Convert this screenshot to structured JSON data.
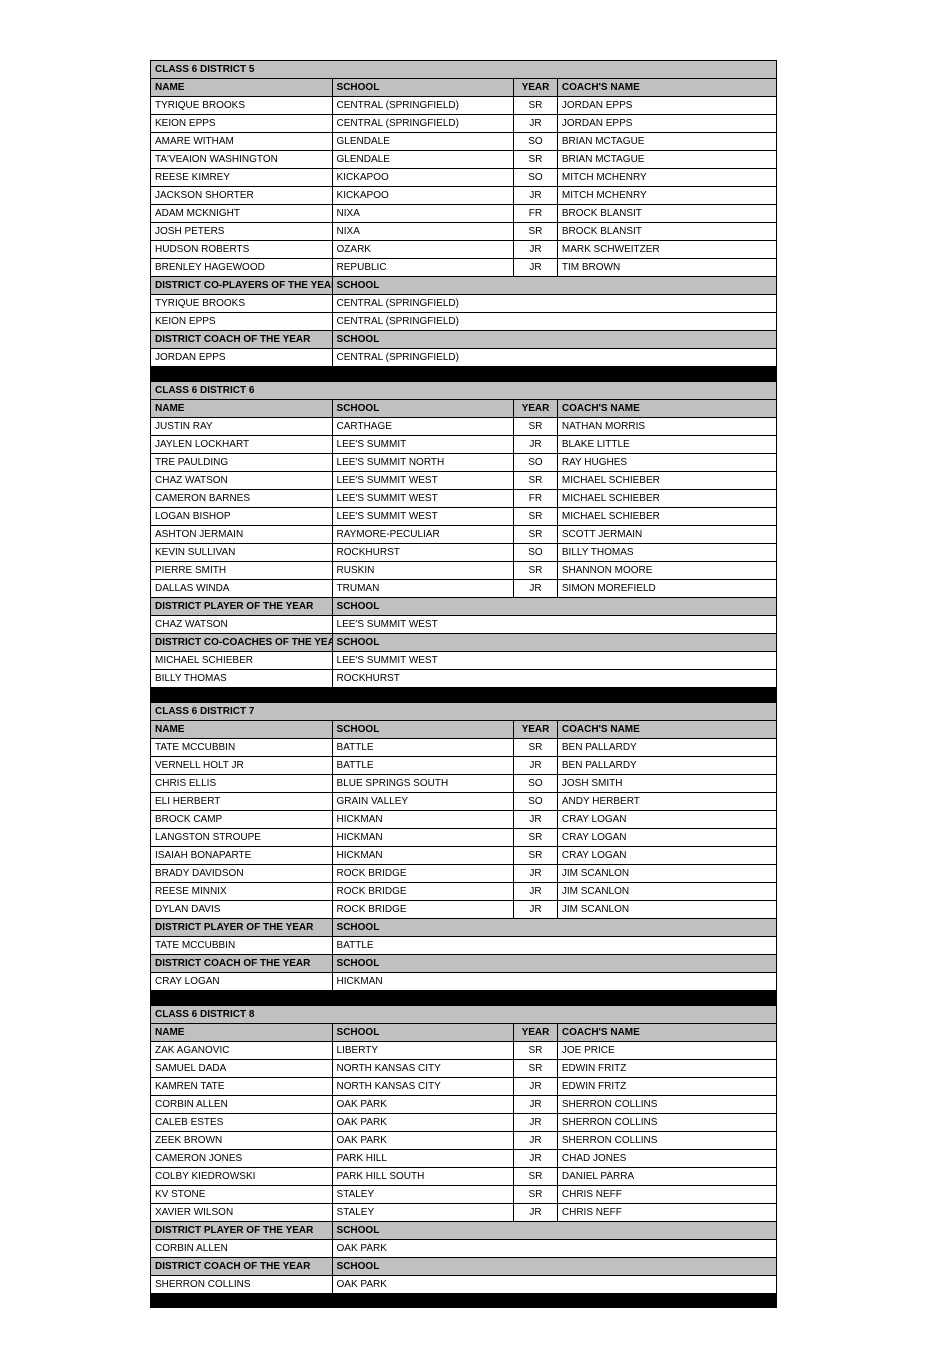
{
  "colors": {
    "header_bg": "#c0c0c0",
    "separator_bg": "#000000",
    "border": "#000000",
    "text": "#000000",
    "bg": "#ffffff"
  },
  "fontsize": 10,
  "labels": {
    "name": "NAME",
    "school": "SCHOOL",
    "year": "YEAR",
    "coach": "COACH'S NAME"
  },
  "districts": [
    {
      "title": "CLASS 6 DISTRICT 5",
      "players": [
        {
          "name": "TYRIQUE BROOKS",
          "school": "CENTRAL (SPRINGFIELD)",
          "year": "SR",
          "coach": "JORDAN EPPS"
        },
        {
          "name": "KEION EPPS",
          "school": "CENTRAL (SPRINGFIELD)",
          "year": "JR",
          "coach": "JORDAN EPPS"
        },
        {
          "name": "AMARE WITHAM",
          "school": "GLENDALE",
          "year": "SO",
          "coach": "BRIAN MCTAGUE"
        },
        {
          "name": "TA'VEAION WASHINGTON",
          "school": "GLENDALE",
          "year": "SR",
          "coach": "BRIAN MCTAGUE"
        },
        {
          "name": "REESE KIMREY",
          "school": "KICKAPOO",
          "year": "SO",
          "coach": "MITCH MCHENRY"
        },
        {
          "name": "JACKSON SHORTER",
          "school": "KICKAPOO",
          "year": "JR",
          "coach": "MITCH MCHENRY"
        },
        {
          "name": "ADAM MCKNIGHT",
          "school": "NIXA",
          "year": "FR",
          "coach": "BROCK BLANSIT"
        },
        {
          "name": "JOSH PETERS",
          "school": "NIXA",
          "year": "SR",
          "coach": "BROCK BLANSIT"
        },
        {
          "name": "HUDSON ROBERTS",
          "school": "OZARK",
          "year": "JR",
          "coach": "MARK SCHWEITZER"
        },
        {
          "name": "BRENLEY HAGEWOOD",
          "school": "REPUBLIC",
          "year": "JR",
          "coach": "TIM BROWN"
        }
      ],
      "awards": [
        {
          "heading": "DISTRICT CO-PLAYERS OF THE YEAR",
          "rows": [
            {
              "name": "TYRIQUE BROOKS",
              "school": "CENTRAL (SPRINGFIELD)"
            },
            {
              "name": "KEION EPPS",
              "school": "CENTRAL (SPRINGFIELD)"
            }
          ]
        },
        {
          "heading": "DISTRICT COACH OF THE YEAR",
          "rows": [
            {
              "name": "JORDAN EPPS",
              "school": "CENTRAL (SPRINGFIELD)"
            }
          ]
        }
      ]
    },
    {
      "title": "CLASS 6 DISTRICT 6",
      "players": [
        {
          "name": "JUSTIN RAY",
          "school": "CARTHAGE",
          "year": "SR",
          "coach": "NATHAN MORRIS"
        },
        {
          "name": "JAYLEN LOCKHART",
          "school": "LEE'S SUMMIT",
          "year": "JR",
          "coach": "BLAKE LITTLE"
        },
        {
          "name": "TRE PAULDING",
          "school": "LEE'S SUMMIT NORTH",
          "year": "SO",
          "coach": "RAY HUGHES"
        },
        {
          "name": "CHAZ WATSON",
          "school": "LEE'S SUMMIT WEST",
          "year": "SR",
          "coach": "MICHAEL SCHIEBER"
        },
        {
          "name": "CAMERON BARNES",
          "school": "LEE'S SUMMIT WEST",
          "year": "FR",
          "coach": "MICHAEL SCHIEBER"
        },
        {
          "name": "LOGAN BISHOP",
          "school": "LEE'S SUMMIT WEST",
          "year": "SR",
          "coach": "MICHAEL SCHIEBER"
        },
        {
          "name": "ASHTON JERMAIN",
          "school": "RAYMORE-PECULIAR",
          "year": "SR",
          "coach": "SCOTT JERMAIN"
        },
        {
          "name": "KEVIN SULLIVAN",
          "school": "ROCKHURST",
          "year": "SO",
          "coach": "BILLY THOMAS"
        },
        {
          "name": "PIERRE SMITH",
          "school": "RUSKIN",
          "year": "SR",
          "coach": "SHANNON MOORE"
        },
        {
          "name": "DALLAS WINDA",
          "school": "TRUMAN",
          "year": "JR",
          "coach": "SIMON MOREFIELD"
        }
      ],
      "awards": [
        {
          "heading": "DISTRICT PLAYER OF THE YEAR",
          "rows": [
            {
              "name": "CHAZ WATSON",
              "school": "LEE'S SUMMIT WEST"
            }
          ]
        },
        {
          "heading": "DISTRICT CO-COACHES OF THE YEAR",
          "rows": [
            {
              "name": "MICHAEL SCHIEBER",
              "school": "LEE'S SUMMIT WEST"
            },
            {
              "name": "BILLY THOMAS",
              "school": "ROCKHURST"
            }
          ]
        }
      ]
    },
    {
      "title": "CLASS 6 DISTRICT 7",
      "players": [
        {
          "name": "TATE MCCUBBIN",
          "school": "BATTLE",
          "year": "SR",
          "coach": "BEN PALLARDY"
        },
        {
          "name": "VERNELL HOLT JR",
          "school": "BATTLE",
          "year": "JR",
          "coach": "BEN PALLARDY"
        },
        {
          "name": "CHRIS ELLIS",
          "school": "BLUE SPRINGS SOUTH",
          "year": "SO",
          "coach": "JOSH SMITH"
        },
        {
          "name": "ELI HERBERT",
          "school": "GRAIN VALLEY",
          "year": "SO",
          "coach": "ANDY HERBERT"
        },
        {
          "name": "BROCK CAMP",
          "school": "HICKMAN",
          "year": "JR",
          "coach": "CRAY LOGAN"
        },
        {
          "name": "LANGSTON STROUPE",
          "school": "HICKMAN",
          "year": "SR",
          "coach": "CRAY LOGAN"
        },
        {
          "name": "ISAIAH BONAPARTE",
          "school": "HICKMAN",
          "year": "SR",
          "coach": "CRAY LOGAN"
        },
        {
          "name": "BRADY DAVIDSON",
          "school": "ROCK BRIDGE",
          "year": "JR",
          "coach": "JIM SCANLON"
        },
        {
          "name": "REESE MINNIX",
          "school": "ROCK BRIDGE",
          "year": "JR",
          "coach": "JIM SCANLON"
        },
        {
          "name": "DYLAN DAVIS",
          "school": "ROCK BRIDGE",
          "year": "JR",
          "coach": "JIM SCANLON"
        }
      ],
      "awards": [
        {
          "heading": "DISTRICT PLAYER OF THE YEAR",
          "rows": [
            {
              "name": "TATE MCCUBBIN",
              "school": "BATTLE"
            }
          ]
        },
        {
          "heading": "DISTRICT COACH OF THE YEAR",
          "rows": [
            {
              "name": "CRAY LOGAN",
              "school": "HICKMAN"
            }
          ]
        }
      ]
    },
    {
      "title": "CLASS 6 DISTRICT 8",
      "players": [
        {
          "name": "ZAK AGANOVIC",
          "school": "LIBERTY",
          "year": "SR",
          "coach": "JOE PRICE"
        },
        {
          "name": "SAMUEL DADA",
          "school": "NORTH KANSAS CITY",
          "year": "SR",
          "coach": "EDWIN FRITZ"
        },
        {
          "name": "KAMREN TATE",
          "school": "NORTH KANSAS CITY",
          "year": "JR",
          "coach": "EDWIN FRITZ"
        },
        {
          "name": "CORBIN ALLEN",
          "school": "OAK PARK",
          "year": "JR",
          "coach": "SHERRON COLLINS"
        },
        {
          "name": "CALEB ESTES",
          "school": "OAK PARK",
          "year": "JR",
          "coach": "SHERRON COLLINS"
        },
        {
          "name": "ZEEK BROWN",
          "school": "OAK PARK",
          "year": "JR",
          "coach": "SHERRON COLLINS"
        },
        {
          "name": "CAMERON JONES",
          "school": "PARK HILL",
          "year": "JR",
          "coach": "CHAD JONES"
        },
        {
          "name": "COLBY KIEDROWSKI",
          "school": "PARK HILL SOUTH",
          "year": "SR",
          "coach": "DANIEL PARRA"
        },
        {
          "name": "KV STONE",
          "school": "STALEY",
          "year": "SR",
          "coach": "CHRIS NEFF"
        },
        {
          "name": "XAVIER WILSON",
          "school": "STALEY",
          "year": "JR",
          "coach": "CHRIS NEFF"
        }
      ],
      "awards": [
        {
          "heading": "DISTRICT PLAYER OF THE YEAR",
          "rows": [
            {
              "name": "CORBIN ALLEN",
              "school": "OAK PARK"
            }
          ]
        },
        {
          "heading": "DISTRICT COACH OF THE YEAR",
          "rows": [
            {
              "name": "SHERRON COLLINS",
              "school": "OAK PARK"
            }
          ]
        }
      ]
    }
  ]
}
